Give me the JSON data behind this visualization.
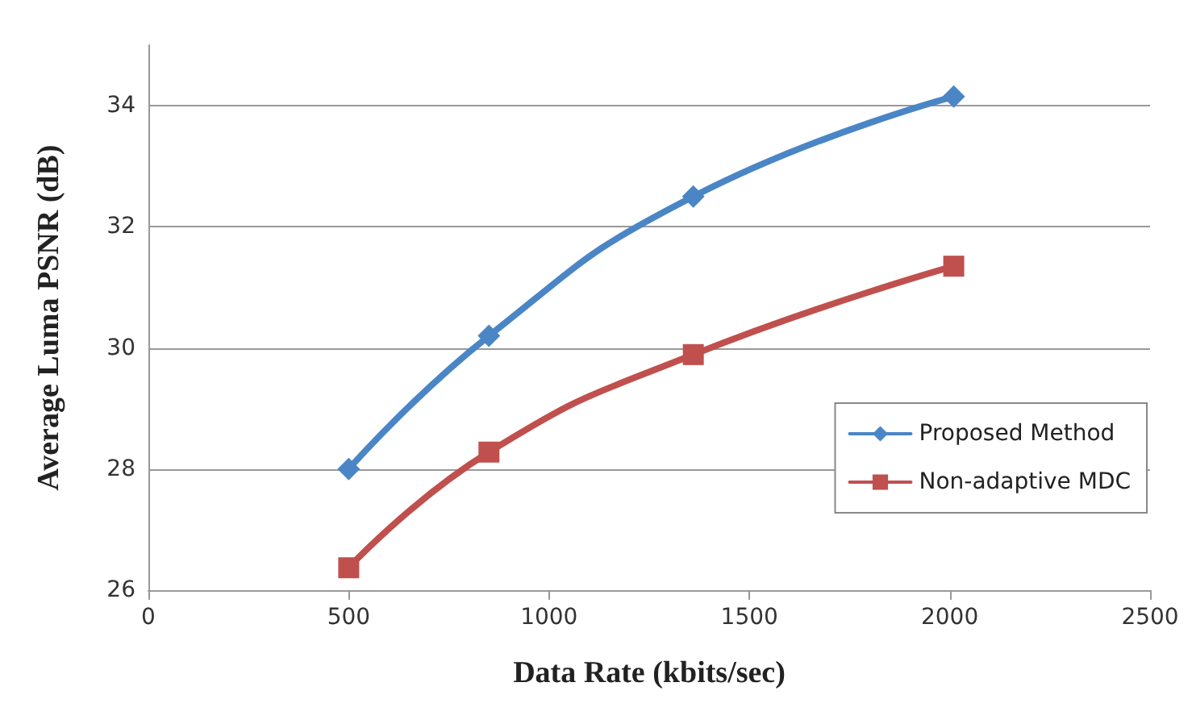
{
  "chart_data": {
    "type": "line",
    "xlabel": "Data Rate (kbits/sec)",
    "ylabel": "Average Luma PSNR (dB)",
    "xlim": [
      0,
      2500
    ],
    "xticks": [
      0,
      500,
      1000,
      1500,
      2000,
      2500
    ],
    "ylim": [
      26,
      35
    ],
    "yticks": [
      26,
      28,
      30,
      32,
      34
    ],
    "grid": "y",
    "legend": "right",
    "line_style": "solid",
    "series": [
      {
        "name": "Proposed Method",
        "color": "#4a86c5",
        "marker": "diamond",
        "x": [
          500,
          850,
          1360,
          2010
        ],
        "values": [
          28.0,
          30.2,
          32.5,
          34.15
        ]
      },
      {
        "name": "Non-adaptive MDC",
        "color": "#c0504d",
        "marker": "square",
        "x": [
          500,
          850,
          1360,
          2010
        ],
        "values": [
          26.37,
          28.28,
          29.89,
          31.35
        ]
      }
    ]
  }
}
